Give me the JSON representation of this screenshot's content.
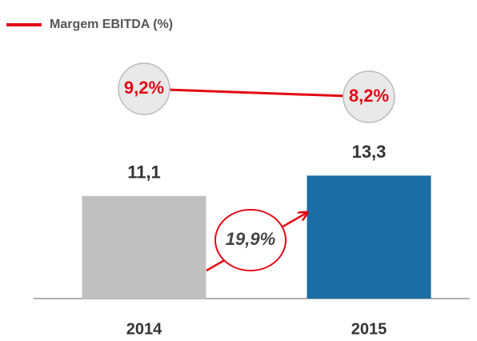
{
  "chart_data": {
    "type": "bar",
    "categories": [
      "2014",
      "2015"
    ],
    "values": [
      11.1,
      13.3
    ],
    "value_labels": [
      "11,1",
      "13,3"
    ],
    "colors": [
      "#c0c0c0",
      "#1a6ea3"
    ],
    "line": {
      "name": "Margem EBITDA (%)",
      "color": "#e30613",
      "values": [
        9.2,
        8.2
      ],
      "value_labels": [
        "9,2%",
        "8,2%"
      ]
    },
    "annotations": [
      "19,9%"
    ]
  }
}
